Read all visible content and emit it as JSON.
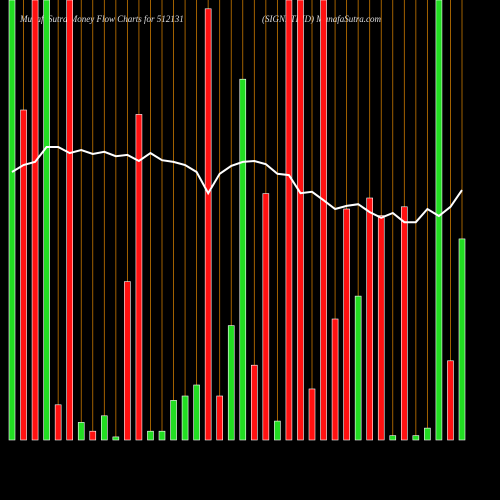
{
  "chart_data": {
    "type": "bar",
    "title": "MunafaSutra Money Flow Charts for 512131",
    "subtitle": "(SIGNETIND) MunafaSutra.com",
    "ylim": [
      0,
      100
    ],
    "grid_color": "#c87800",
    "values": [
      100,
      75,
      100,
      100,
      8,
      100,
      4,
      2,
      5.5,
      0.7,
      36,
      74,
      2,
      2,
      9,
      10,
      12.5,
      98,
      10,
      26,
      82,
      17,
      56,
      4.3,
      100,
      100,
      11.6,
      100,
      27.5,
      52.5,
      32.7,
      55,
      51,
      1,
      53,
      1,
      2.7,
      100,
      18,
      45.7
    ],
    "colors": [
      "#22dd22",
      "#ff1111",
      "#ff1111",
      "#22dd22",
      "#ff1111",
      "#ff1111",
      "#22dd22",
      "#ff1111",
      "#22dd22",
      "#22dd22",
      "#ff1111",
      "#ff1111",
      "#22dd22",
      "#22dd22",
      "#22dd22",
      "#22dd22",
      "#22dd22",
      "#ff1111",
      "#ff1111",
      "#22dd22",
      "#22dd22",
      "#ff1111",
      "#ff1111",
      "#22dd22",
      "#ff1111",
      "#ff1111",
      "#ff1111",
      "#ff1111",
      "#ff1111",
      "#ff1111",
      "#22dd22",
      "#ff1111",
      "#ff1111",
      "#22dd22",
      "#ff1111",
      "#22dd22",
      "#22dd22",
      "#22dd22",
      "#ff1111",
      "#22dd22"
    ],
    "line": {
      "color": "#ffffff",
      "values": [
        60.9,
        62.5,
        63.2,
        66.6,
        66.6,
        65.2,
        65.9,
        65,
        65.5,
        64.5,
        64.8,
        63.4,
        65.2,
        63.6,
        63.2,
        62.5,
        60.9,
        56.1,
        60.5,
        62.3,
        63.2,
        63.4,
        62.7,
        60.5,
        60.2,
        56.1,
        56.4,
        54.5,
        52.5,
        53.2,
        53.6,
        51.8,
        50.5,
        51.6,
        49.5,
        49.5,
        52.5,
        50.9,
        53,
        56.8
      ]
    }
  }
}
